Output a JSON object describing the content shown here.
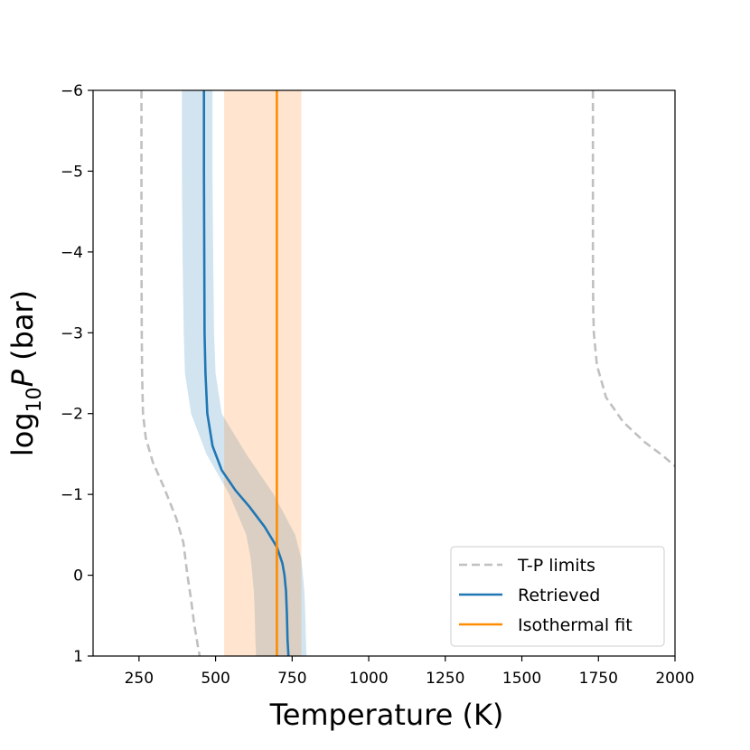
{
  "chart_data": {
    "type": "line",
    "xlabel": "Temperature (K)",
    "ylabel": {
      "prefix": "log",
      "subscript": "10",
      "italic": "P",
      "suffix": " (bar)"
    },
    "xlim": [
      100,
      2000
    ],
    "ylim": [
      1,
      -6
    ],
    "y_inverted": true,
    "x_ticks": [
      {
        "value": 250,
        "label": "250"
      },
      {
        "value": 500,
        "label": "500"
      },
      {
        "value": 750,
        "label": "750"
      },
      {
        "value": 1000,
        "label": "1000"
      },
      {
        "value": 1250,
        "label": "1250"
      },
      {
        "value": 1500,
        "label": "1500"
      },
      {
        "value": 1750,
        "label": "1750"
      },
      {
        "value": 2000,
        "label": "2000"
      }
    ],
    "y_ticks": [
      {
        "value": -6,
        "label": "−6"
      },
      {
        "value": -5,
        "label": "−5"
      },
      {
        "value": -4,
        "label": "−4"
      },
      {
        "value": -3,
        "label": "−3"
      },
      {
        "value": -2,
        "label": "−2"
      },
      {
        "value": -1,
        "label": "−1"
      },
      {
        "value": 0,
        "label": "0"
      },
      {
        "value": 1,
        "label": "1"
      }
    ],
    "grid": false,
    "legend_position": "bottom-right",
    "legend": [
      {
        "label": "T-P limits",
        "series": "tp_limits"
      },
      {
        "label": "Retrieved",
        "series": "retrieved"
      },
      {
        "label": "Isothermal fit",
        "series": "isothermal"
      }
    ],
    "bands": [
      {
        "name": "retrieved-uncertainty-band",
        "color": "#1f77b4",
        "opacity": 0.2,
        "pressure": [
          -6,
          -5,
          -4,
          -3,
          -2.5,
          -2,
          -1.5,
          -1,
          -0.5,
          -0.2,
          0,
          0.2,
          0.5,
          0.8,
          1
        ],
        "t_low": [
          390,
          390,
          392,
          396,
          400,
          420,
          470,
          545,
          600,
          615,
          620,
          625,
          628,
          630,
          632
        ],
        "t_high": [
          490,
          490,
          492,
          495,
          500,
          520,
          600,
          690,
          760,
          780,
          785,
          790,
          793,
          795,
          797
        ]
      },
      {
        "name": "isothermal-uncertainty-band",
        "color": "#ff7f0e",
        "opacity": 0.2,
        "pressure": [
          -6,
          1
        ],
        "t_low": [
          528,
          528
        ],
        "t_high": [
          780,
          780
        ]
      }
    ],
    "series": [
      {
        "name": "tp_limits",
        "label": "T-P limits",
        "color": "#c0c0c0",
        "style": "dashed",
        "segments": [
          {
            "temperature": [
              258,
              258,
              258,
              259,
              260,
              263,
              272,
              295,
              330,
              372,
              395,
              408,
              420,
              430,
              441,
              448
            ],
            "pressure": [
              -6,
              -5,
              -4,
              -3,
              -2.5,
              -2,
              -1.7,
              -1.4,
              -1.1,
              -0.7,
              -0.4,
              0,
              0.3,
              0.6,
              0.85,
              1
            ]
          },
          {
            "temperature": [
              1732,
              1732,
              1732,
              1733,
              1735,
              1745,
              1775,
              1830,
              1900,
              1960,
              2000
            ],
            "pressure": [
              -6,
              -5,
              -4,
              -3.3,
              -3,
              -2.6,
              -2.2,
              -1.9,
              -1.65,
              -1.48,
              -1.35
            ]
          }
        ]
      },
      {
        "name": "retrieved",
        "label": "Retrieved",
        "color": "#1f77b4",
        "style": "solid",
        "temperature": [
          462,
          462,
          463,
          464,
          467,
          473,
          490,
          520,
          565,
          610,
          660,
          700,
          718,
          725,
          730,
          733,
          735,
          738
        ],
        "pressure": [
          -6,
          -5,
          -4,
          -3,
          -2.5,
          -2,
          -1.6,
          -1.3,
          -1.05,
          -0.85,
          -0.6,
          -0.35,
          -0.15,
          0,
          0.2,
          0.5,
          0.8,
          1
        ]
      },
      {
        "name": "isothermal",
        "label": "Isothermal fit",
        "color": "#ff8c00",
        "style": "solid",
        "temperature": [
          700,
          700
        ],
        "pressure": [
          -6,
          1
        ]
      }
    ]
  }
}
